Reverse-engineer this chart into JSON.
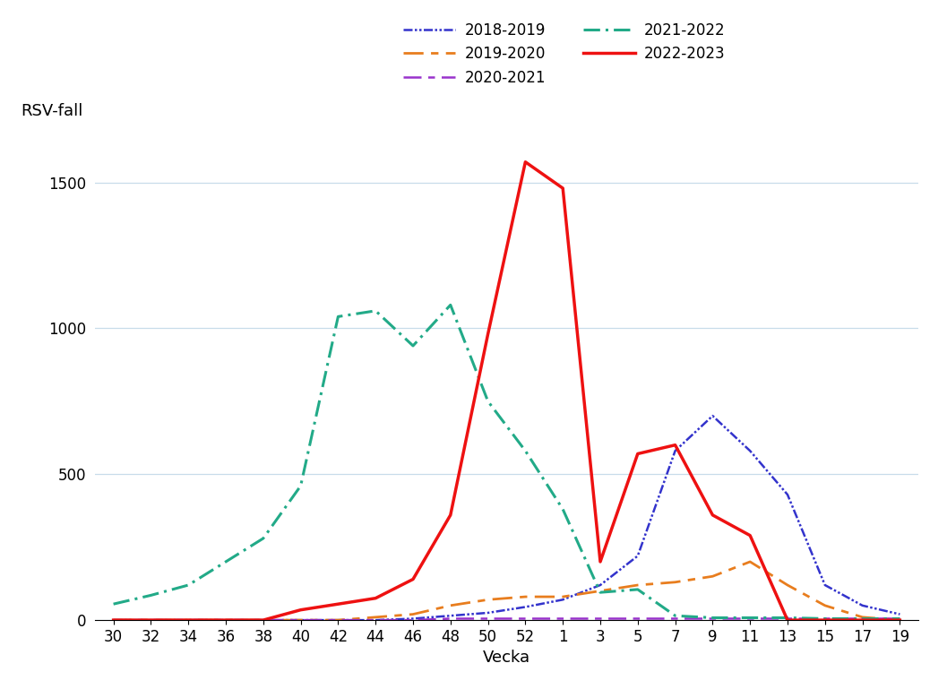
{
  "x_labels": [
    "30",
    "32",
    "34",
    "36",
    "38",
    "40",
    "42",
    "44",
    "46",
    "48",
    "50",
    "52",
    "1",
    "3",
    "5",
    "7",
    "9",
    "11",
    "13",
    "15",
    "17",
    "19"
  ],
  "series": {
    "2018-2019": {
      "color": "#3333cc",
      "linewidth": 1.8,
      "values": [
        0,
        0,
        0,
        0,
        0,
        0,
        0,
        0,
        5,
        15,
        25,
        45,
        70,
        120,
        220,
        580,
        700,
        580,
        430,
        120,
        50,
        20
      ]
    },
    "2019-2020": {
      "color": "#e87d1e",
      "linewidth": 2.0,
      "values": [
        0,
        0,
        0,
        0,
        0,
        0,
        0,
        10,
        20,
        50,
        70,
        80,
        80,
        100,
        120,
        130,
        150,
        200,
        120,
        50,
        10,
        0
      ]
    },
    "2020-2021": {
      "color": "#9933cc",
      "linewidth": 1.8,
      "values": [
        0,
        0,
        0,
        0,
        0,
        0,
        0,
        0,
        0,
        5,
        5,
        5,
        5,
        5,
        5,
        5,
        5,
        5,
        5,
        5,
        5,
        5
      ]
    },
    "2021-2022": {
      "color": "#22aa88",
      "linewidth": 2.2,
      "values": [
        55,
        85,
        120,
        200,
        280,
        460,
        1040,
        1060,
        940,
        1080,
        750,
        580,
        380,
        95,
        105,
        15,
        8,
        8,
        8,
        5,
        5,
        5
      ]
    },
    "2022-2023": {
      "color": "#ee1111",
      "linewidth": 2.5,
      "values": [
        0,
        0,
        0,
        0,
        0,
        35,
        55,
        75,
        140,
        360,
        980,
        1570,
        1480,
        200,
        570,
        600,
        360,
        290,
        0,
        0,
        0,
        0
      ]
    }
  },
  "legend_order": [
    "2018-2019",
    "2019-2020",
    "2020-2021",
    "2021-2022",
    "2022-2023"
  ],
  "ylabel": "RSV-fall",
  "xlabel": "Vecka",
  "ylim": [
    0,
    1700
  ],
  "yticks": [
    0,
    500,
    1000,
    1500
  ],
  "background_color": "#ffffff",
  "grid_color": "#c8dcea",
  "axis_fontsize": 13,
  "tick_fontsize": 12,
  "legend_fontsize": 12
}
